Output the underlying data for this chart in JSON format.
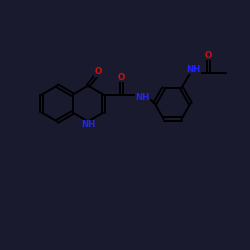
{
  "bg_color": "#1a1a2e",
  "bond_color": "black",
  "N_color": "#2222ff",
  "O_color": "#cc1111",
  "lw": 1.4,
  "dbl_off": 0.09,
  "fs": 6.2,
  "figsize": [
    2.5,
    2.5
  ],
  "dpi": 100,
  "xlim": [
    -1,
    13
  ],
  "ylim": [
    0,
    10
  ]
}
